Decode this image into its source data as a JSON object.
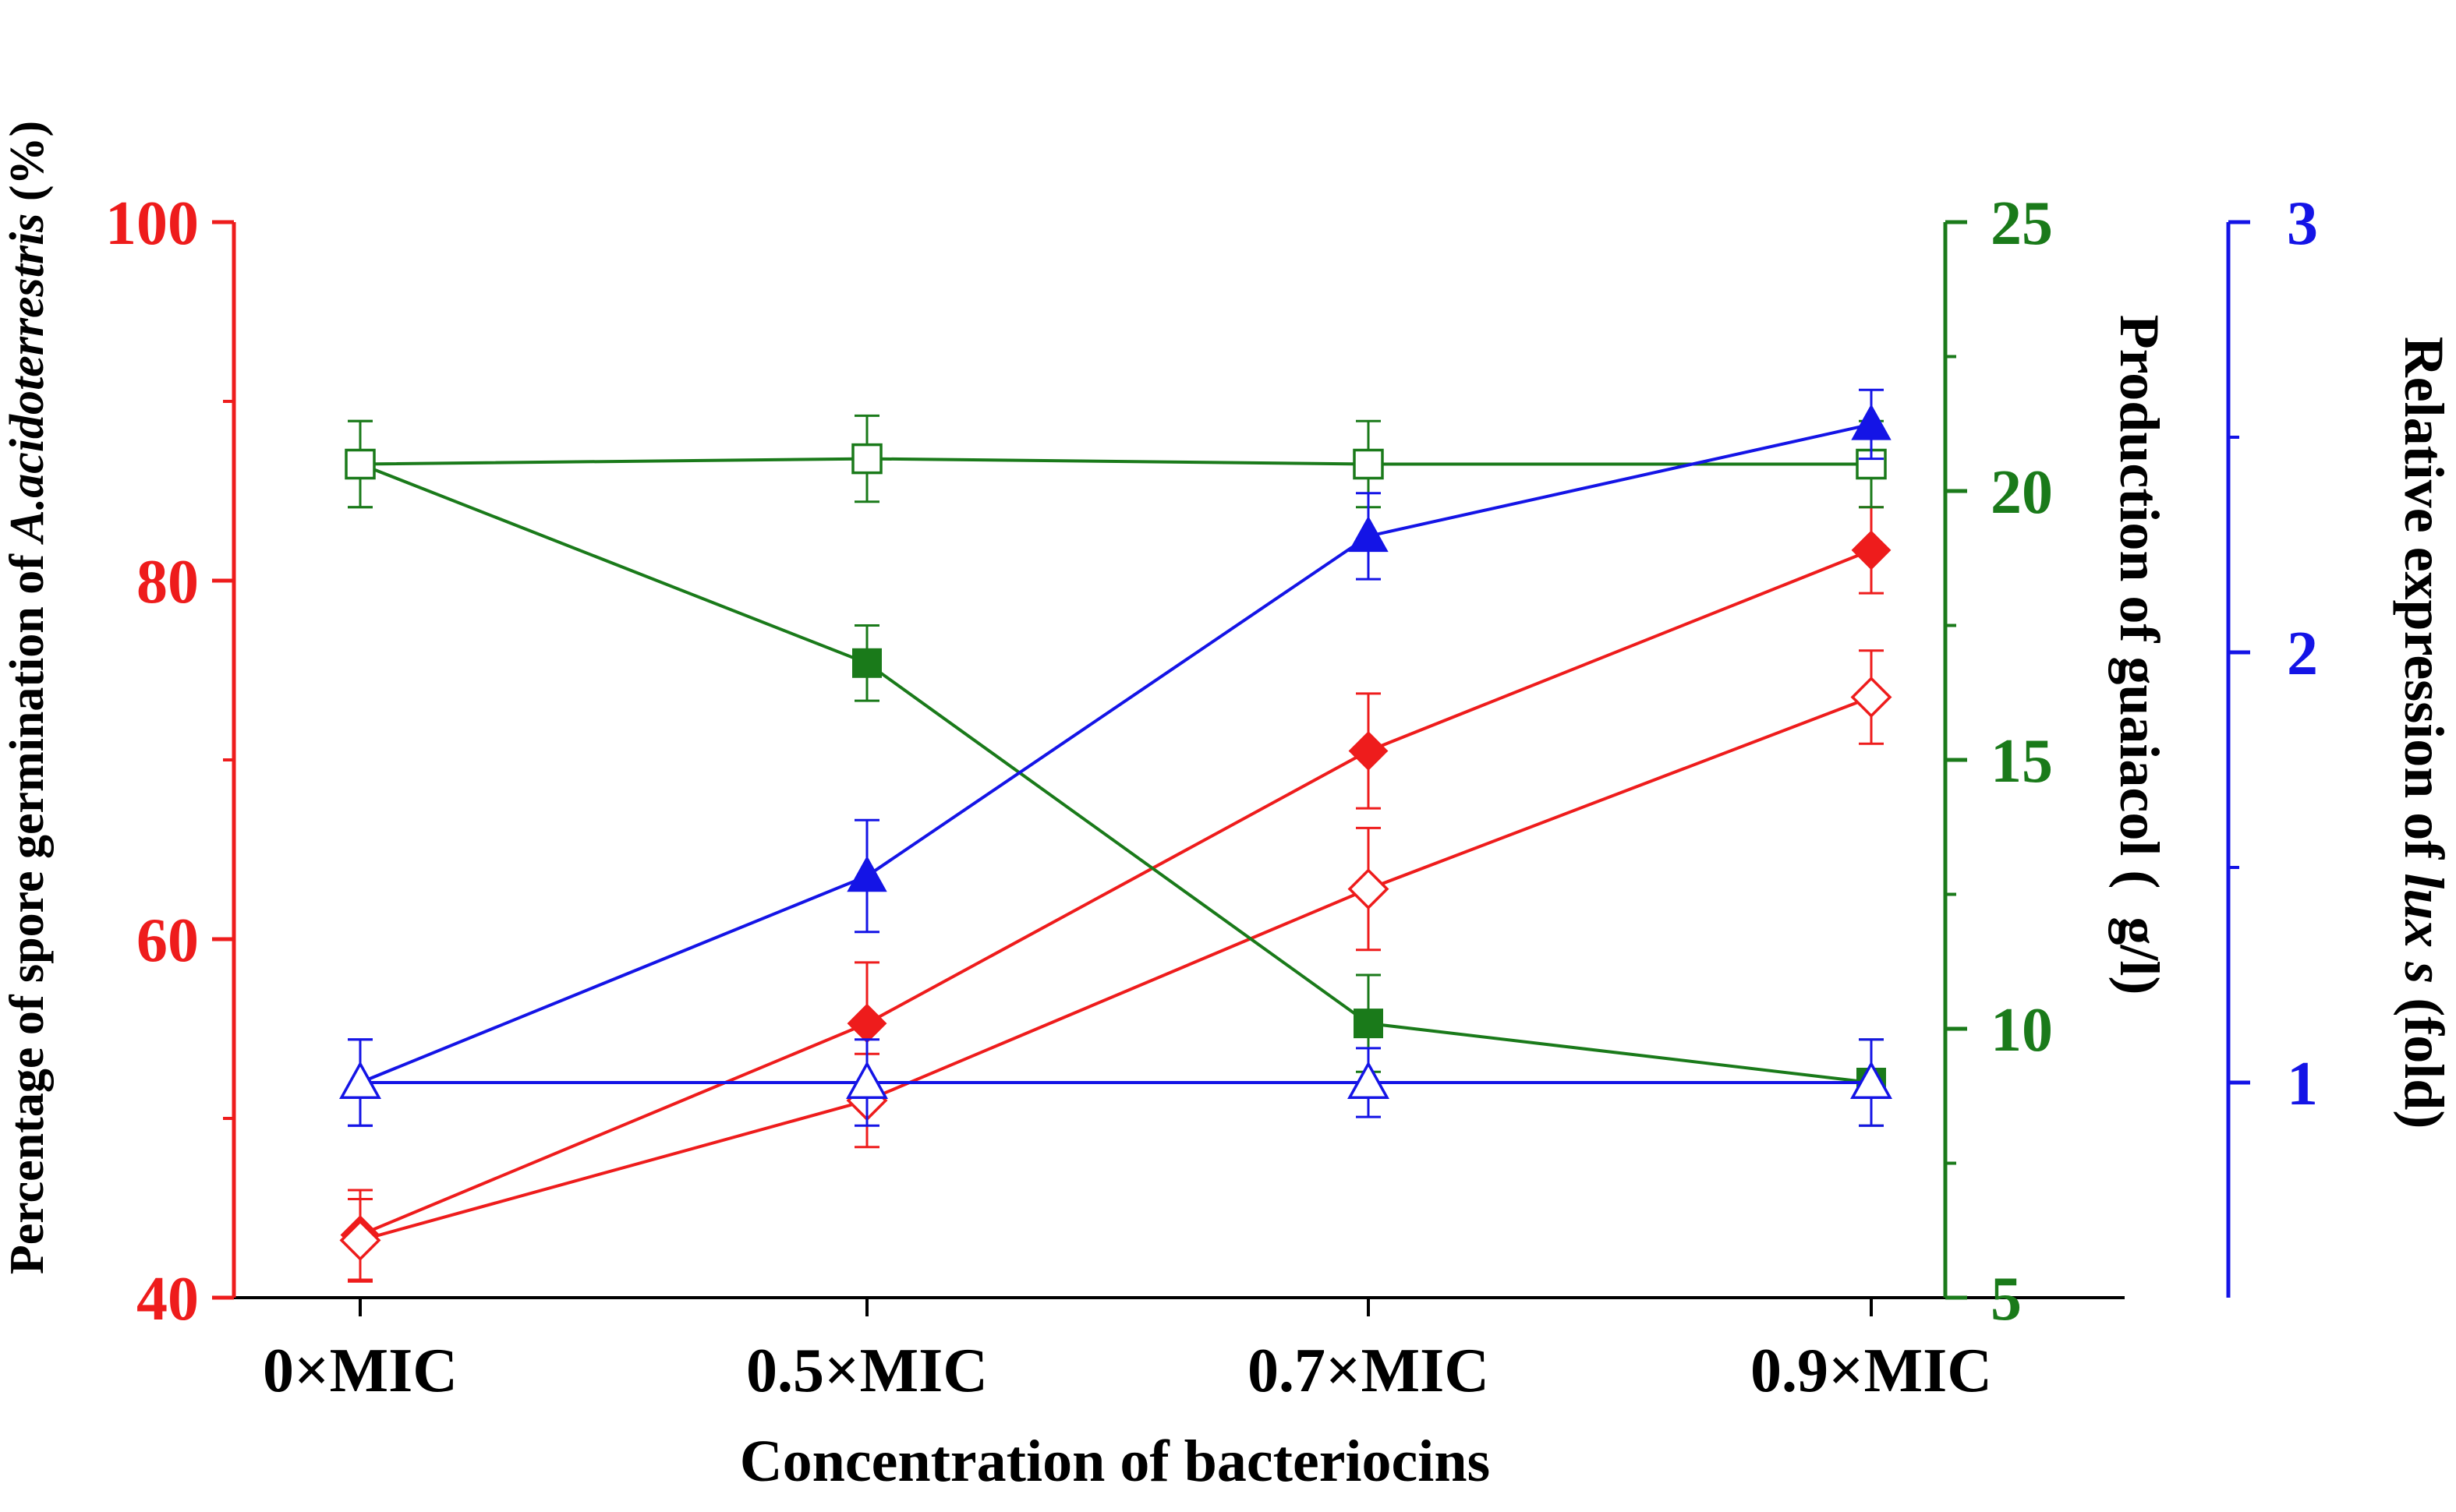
{
  "chart_data": {
    "type": "line",
    "xlabel": "Concentration of bacteriocins",
    "categories": [
      "0×MIC",
      "0.5×MIC",
      "0.7×MIC",
      "0.9×MIC"
    ],
    "axes": {
      "left": {
        "label_prefix": "Percentage of spore germination of ",
        "label_italic": "A.acidoterrestris",
        "label_suffix": " (%)",
        "range": [
          40,
          100
        ],
        "ticks": [
          "40",
          "60",
          "80",
          "100"
        ],
        "color": "#ee1c1c"
      },
      "right_green": {
        "label": "Production of guaiacol (  g/l)",
        "range": [
          5,
          25
        ],
        "ticks": [
          "5",
          "10",
          "15",
          "20",
          "25"
        ],
        "color": "#1a7a1a"
      },
      "right_blue": {
        "label_prefix": "Relative expression of ",
        "label_italic": "lux s",
        "label_suffix": " (fold)",
        "range": [
          0.5,
          3
        ],
        "ticks": [
          "1",
          "2",
          "3"
        ],
        "color": "#1414e6"
      }
    },
    "series": [
      {
        "name": "spore germination (filled)",
        "axis": "left",
        "marker": "diamond",
        "filled": true,
        "values": [
          43.5,
          55.3,
          70.5,
          81.7
        ],
        "errors": [
          2.5,
          3.4,
          3.2,
          2.4
        ]
      },
      {
        "name": "spore germination (open)",
        "axis": "left",
        "marker": "diamond",
        "filled": false,
        "values": [
          43.2,
          51.0,
          62.8,
          73.5
        ],
        "errors": [
          2.3,
          2.6,
          3.4,
          2.6
        ]
      },
      {
        "name": "guaiacol (filled)",
        "axis": "right_green",
        "marker": "square",
        "filled": true,
        "values": [
          20.5,
          16.8,
          10.1,
          9.0
        ],
        "errors": [
          0.8,
          0.7,
          0.9,
          0.8
        ]
      },
      {
        "name": "guaiacol (open)",
        "axis": "right_green",
        "marker": "square",
        "filled": false,
        "values": [
          20.5,
          20.6,
          20.5,
          20.5
        ],
        "errors": [
          0.8,
          0.8,
          0.8,
          0.8
        ]
      },
      {
        "name": "lux s (filled)",
        "axis": "right_blue",
        "marker": "triangle",
        "filled": true,
        "values": [
          1.0,
          1.48,
          2.27,
          2.53
        ],
        "errors": [
          0.1,
          0.13,
          0.1,
          0.08
        ]
      },
      {
        "name": "lux s (open)",
        "axis": "right_blue",
        "marker": "triangle",
        "filled": false,
        "values": [
          1.0,
          1.0,
          1.0,
          1.0
        ],
        "errors": [
          0.1,
          0.1,
          0.08,
          0.1
        ]
      }
    ]
  }
}
